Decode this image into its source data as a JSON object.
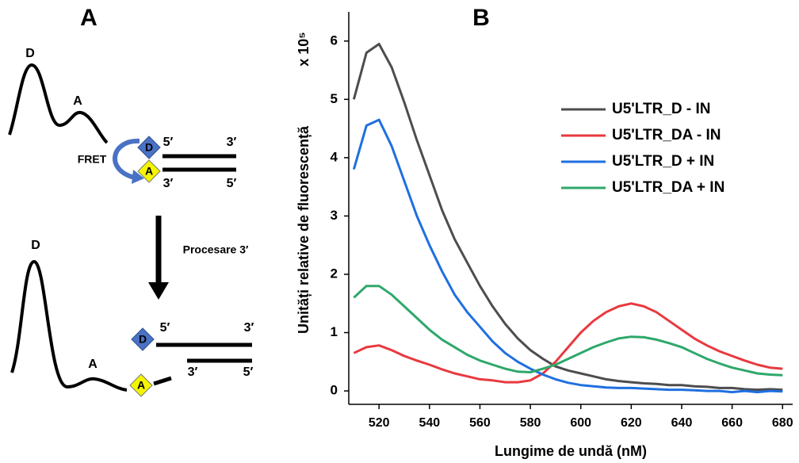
{
  "panel_a": {
    "label": "A",
    "top": {
      "peak_d": "D",
      "peak_a": "A",
      "fret": "FRET",
      "donor": "D",
      "acceptor": "A",
      "strand1_left": "5′",
      "strand1_right": "3′",
      "strand2_left": "3′",
      "strand2_right": "5′"
    },
    "step": "Procesare 3′",
    "bottom": {
      "peak_d": "D",
      "peak_a": "A",
      "donor": "D",
      "acceptor": "A",
      "strand1_left": "5′",
      "strand1_right": "3′",
      "strand2_left": "3′",
      "strand2_right": "5′"
    }
  },
  "chart_data": {
    "type": "line",
    "panel_label": "B",
    "x_label": "Lungime de undă (nM)",
    "y_label": "Unități relative de fluorescență",
    "y_label_unit": "x 10⁵",
    "x": [
      510,
      515,
      520,
      525,
      530,
      535,
      540,
      545,
      550,
      555,
      560,
      565,
      570,
      575,
      580,
      585,
      590,
      595,
      600,
      605,
      610,
      615,
      620,
      625,
      630,
      635,
      640,
      645,
      650,
      655,
      660,
      665,
      670,
      675,
      680
    ],
    "series": [
      {
        "name": "U5'LTR_D - IN",
        "color": "#4d4d4d",
        "values": [
          5.0,
          5.8,
          5.95,
          5.55,
          4.95,
          4.3,
          3.7,
          3.1,
          2.6,
          2.2,
          1.8,
          1.45,
          1.15,
          0.9,
          0.7,
          0.55,
          0.42,
          0.35,
          0.3,
          0.25,
          0.2,
          0.17,
          0.15,
          0.13,
          0.12,
          0.1,
          0.1,
          0.08,
          0.07,
          0.05,
          0.05,
          0.03,
          0.02,
          0.03,
          0.02
        ]
      },
      {
        "name": "U5'LTR_DA - IN",
        "color": "#e8393f",
        "values": [
          0.65,
          0.75,
          0.78,
          0.7,
          0.6,
          0.52,
          0.45,
          0.37,
          0.3,
          0.25,
          0.2,
          0.18,
          0.15,
          0.15,
          0.18,
          0.3,
          0.5,
          0.75,
          1.0,
          1.2,
          1.35,
          1.45,
          1.5,
          1.45,
          1.35,
          1.2,
          1.05,
          0.9,
          0.78,
          0.68,
          0.6,
          0.52,
          0.45,
          0.4,
          0.38
        ]
      },
      {
        "name": "U5'LTR_D + IN",
        "color": "#1f6fe0",
        "values": [
          3.8,
          4.55,
          4.65,
          4.2,
          3.6,
          3.0,
          2.5,
          2.05,
          1.65,
          1.35,
          1.1,
          0.85,
          0.65,
          0.5,
          0.38,
          0.28,
          0.2,
          0.14,
          0.1,
          0.08,
          0.06,
          0.05,
          0.05,
          0.04,
          0.03,
          0.02,
          0.02,
          0.01,
          0.0,
          0.0,
          -0.02,
          0.0,
          -0.02,
          0.0,
          -0.01
        ]
      },
      {
        "name": "U5'LTR_DA + IN",
        "color": "#2ea86a",
        "values": [
          1.6,
          1.8,
          1.8,
          1.65,
          1.45,
          1.25,
          1.05,
          0.88,
          0.75,
          0.62,
          0.52,
          0.45,
          0.38,
          0.33,
          0.32,
          0.38,
          0.45,
          0.55,
          0.65,
          0.75,
          0.83,
          0.9,
          0.93,
          0.92,
          0.88,
          0.82,
          0.75,
          0.65,
          0.55,
          0.47,
          0.4,
          0.35,
          0.3,
          0.28,
          0.27
        ]
      }
    ],
    "xlim": [
      508,
      684
    ],
    "xticks": [
      520,
      540,
      560,
      580,
      600,
      620,
      640,
      660,
      680
    ],
    "ylim": [
      -0.23,
      6.5
    ],
    "yticks": [
      0,
      1,
      2,
      3,
      4,
      5,
      6
    ],
    "legend": "upper right"
  }
}
